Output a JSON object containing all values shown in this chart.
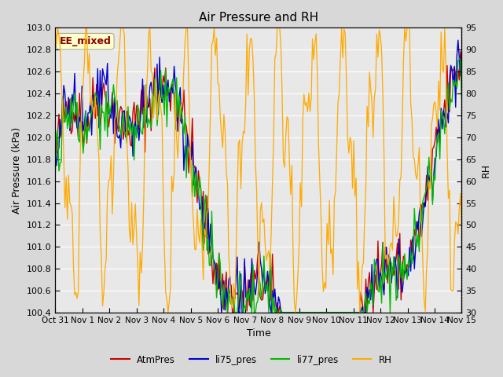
{
  "title": "Air Pressure and RH",
  "xlabel": "Time",
  "ylabel_left": "Air Pressure (kPa)",
  "ylabel_right": "RH",
  "ylim_left": [
    100.4,
    103.0
  ],
  "ylim_right": [
    30,
    95
  ],
  "yticks_left": [
    100.4,
    100.6,
    100.8,
    101.0,
    101.2,
    101.4,
    101.6,
    101.8,
    102.0,
    102.2,
    102.4,
    102.6,
    102.8,
    103.0
  ],
  "yticks_right": [
    30,
    35,
    40,
    45,
    50,
    55,
    60,
    65,
    70,
    75,
    80,
    85,
    90,
    95
  ],
  "xtick_labels": [
    "Oct 31",
    "Nov 1",
    "Nov 2",
    "Nov 3",
    "Nov 4",
    "Nov 5",
    "Nov 6",
    "Nov 7",
    "Nov 8",
    "Nov 9",
    "Nov 10",
    "Nov 11",
    "Nov 12",
    "Nov 13",
    "Nov 14",
    "Nov 15"
  ],
  "legend_entries": [
    "AtmPres",
    "li75_pres",
    "li77_pres",
    "RH"
  ],
  "colors": {
    "AtmPres": "#cc0000",
    "li75_pres": "#0000cc",
    "li77_pres": "#00bb00",
    "RH": "#ffaa00"
  },
  "annotation_text": "EE_mixed",
  "annotation_color": "#8B0000",
  "annotation_bg": "#ffffcc",
  "bg_color": "#e8e8e8",
  "plot_bg": "#f0f0f0",
  "grid_color": "#ffffff",
  "num_points": 336,
  "seed": 42
}
